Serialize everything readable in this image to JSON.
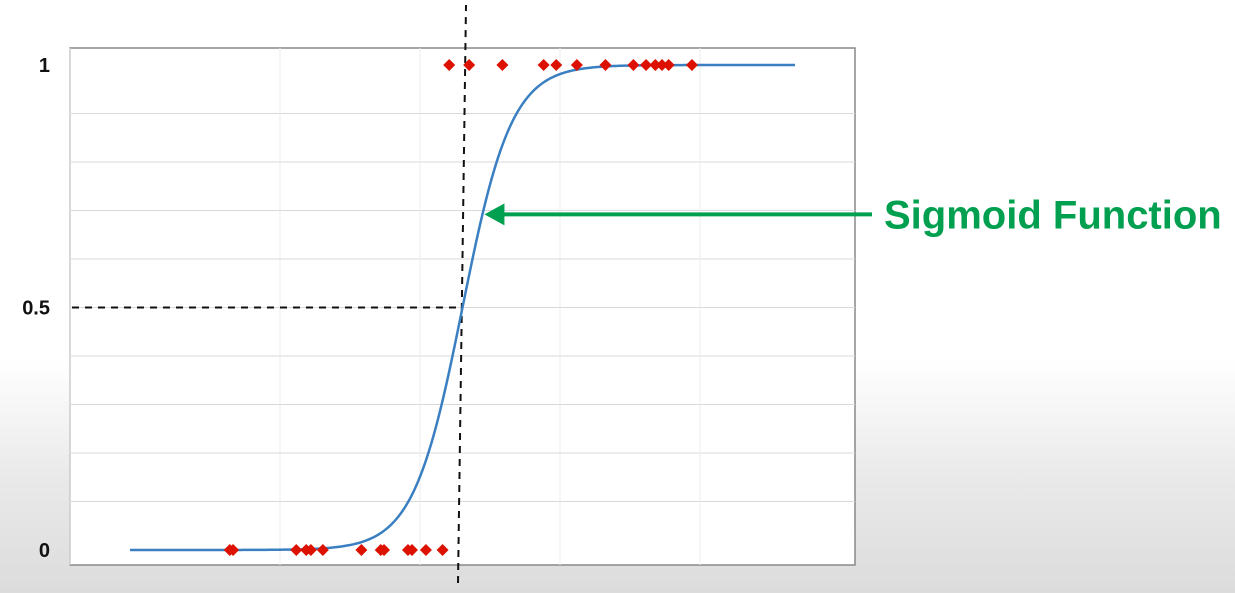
{
  "chart_data": {
    "type": "scatter",
    "title": "",
    "xlabel": "",
    "ylabel": "",
    "xlim": [
      0,
      1
    ],
    "ylim": [
      0,
      1
    ],
    "grid": true,
    "y_ticks": [
      {
        "value": 0,
        "label": "0"
      },
      {
        "value": 0.5,
        "label": "0.5"
      },
      {
        "value": 1,
        "label": "1"
      }
    ],
    "threshold": {
      "x": 0.5,
      "y": 0.5
    },
    "sigmoid": {
      "midpoint": 0.5,
      "steepness": 27
    },
    "series": [
      {
        "points": [
          {
            "x": 0.15,
            "y": 0
          },
          {
            "x": 0.155,
            "y": 0
          },
          {
            "x": 0.25,
            "y": 0
          },
          {
            "x": 0.265,
            "y": 0
          },
          {
            "x": 0.272,
            "y": 0
          },
          {
            "x": 0.29,
            "y": 0
          },
          {
            "x": 0.348,
            "y": 0
          },
          {
            "x": 0.377,
            "y": 0
          },
          {
            "x": 0.382,
            "y": 0
          },
          {
            "x": 0.418,
            "y": 0
          },
          {
            "x": 0.424,
            "y": 0
          },
          {
            "x": 0.445,
            "y": 0
          },
          {
            "x": 0.47,
            "y": 0
          },
          {
            "x": 0.48,
            "y": 1
          },
          {
            "x": 0.51,
            "y": 1
          },
          {
            "x": 0.56,
            "y": 1
          },
          {
            "x": 0.622,
            "y": 1
          },
          {
            "x": 0.641,
            "y": 1
          },
          {
            "x": 0.672,
            "y": 1
          },
          {
            "x": 0.715,
            "y": 1
          },
          {
            "x": 0.757,
            "y": 1
          },
          {
            "x": 0.776,
            "y": 1
          },
          {
            "x": 0.79,
            "y": 1
          },
          {
            "x": 0.8,
            "y": 1
          },
          {
            "x": 0.81,
            "y": 1
          },
          {
            "x": 0.845,
            "y": 1
          }
        ]
      }
    ],
    "annotation": {
      "text": "Sigmoid Function",
      "color": "#00a050",
      "points_to_x": 0.53
    },
    "colors": {
      "curve": "#3a7fc1",
      "points": "#dd1100",
      "grid": "#d9d9d9",
      "frame": "#888888",
      "guide": "#111111"
    }
  }
}
